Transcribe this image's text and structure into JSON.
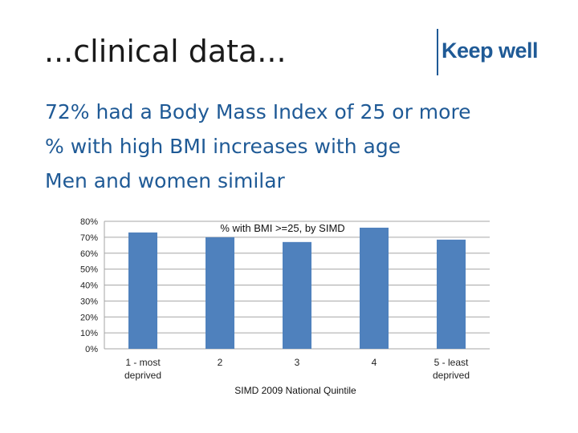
{
  "slide": {
    "title": "...clinical data...",
    "logo_text": "Keep well",
    "bullets": [
      "72% had a Body Mass Index of 25 or more",
      "% with high BMI increases with age",
      "Men and women similar"
    ]
  },
  "colors": {
    "bar": "#4f81bd",
    "bullet_text": "#1f5a96",
    "gridline": "#a6a6a6"
  },
  "chart_data": {
    "type": "bar",
    "title": "% with BMI >=25, by SIMD",
    "xlabel": "SIMD 2009 National Quintile",
    "ylabel": "",
    "categories": [
      [
        "1 - most",
        "deprived"
      ],
      [
        "2"
      ],
      [
        "3"
      ],
      [
        "4"
      ],
      [
        "5 - least",
        "deprived"
      ]
    ],
    "values": [
      0.73,
      0.7,
      0.67,
      0.76,
      0.685
    ],
    "ylim": [
      0,
      0.8
    ],
    "yticks": [
      "0%",
      "10%",
      "20%",
      "30%",
      "40%",
      "50%",
      "60%",
      "70%",
      "80%"
    ],
    "grid": true,
    "legend": "none"
  }
}
